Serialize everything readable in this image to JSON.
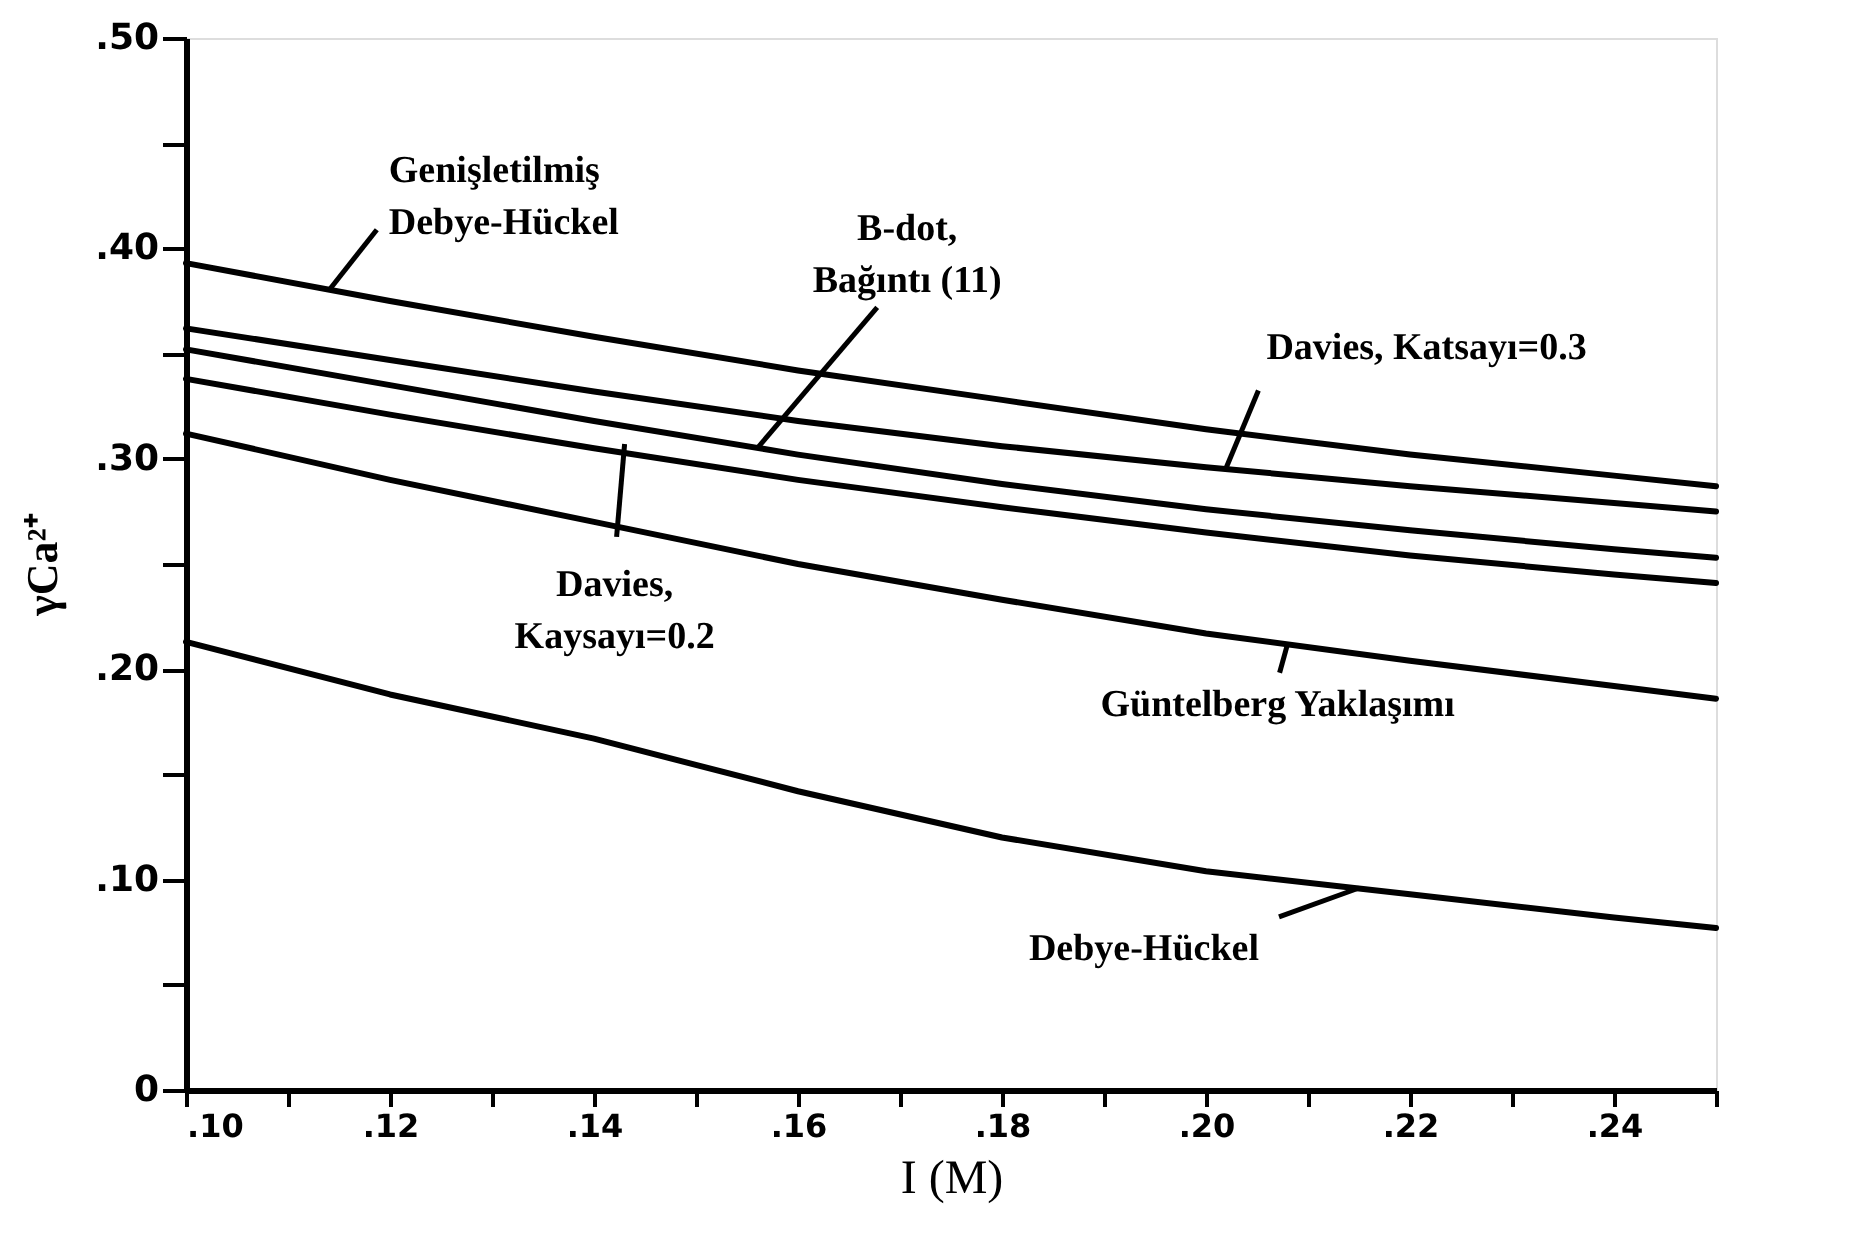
{
  "chart_data": {
    "type": "line",
    "xlabel": "I (M)",
    "ylabel": "γCa²⁺",
    "x": [
      0.1,
      0.12,
      0.14,
      0.16,
      0.18,
      0.2,
      0.22,
      0.24,
      0.25
    ],
    "series": [
      {
        "color": "#000000",
        "values": [
          0.393,
          0.375,
          0.358,
          0.342,
          0.328,
          0.314,
          0.302,
          0.292,
          0.287
        ]
      },
      {
        "color": "#000000",
        "values": [
          0.362,
          0.347,
          0.332,
          0.318,
          0.306,
          0.296,
          0.287,
          0.279,
          0.275
        ]
      },
      {
        "color": "#000000",
        "values": [
          0.352,
          0.335,
          0.318,
          0.302,
          0.288,
          0.276,
          0.266,
          0.257,
          0.253
        ]
      },
      {
        "color": "#000000",
        "values": [
          0.338,
          0.321,
          0.305,
          0.29,
          0.277,
          0.265,
          0.254,
          0.245,
          0.241
        ]
      },
      {
        "color": "#000000",
        "values": [
          0.312,
          0.29,
          0.27,
          0.25,
          0.233,
          0.217,
          0.204,
          0.192,
          0.186
        ]
      },
      {
        "color": "#000000",
        "values": [
          0.213,
          0.188,
          0.167,
          0.142,
          0.12,
          0.104,
          0.093,
          0.082,
          0.077
        ]
      }
    ],
    "xlim": [
      0.1,
      0.25
    ],
    "xticks": [
      {
        "value": 0.1,
        "label": ".10"
      },
      {
        "value": 0.11,
        "label": null
      },
      {
        "value": 0.12,
        "label": ".12"
      },
      {
        "value": 0.13,
        "label": null
      },
      {
        "value": 0.14,
        "label": ".14"
      },
      {
        "value": 0.15,
        "label": null
      },
      {
        "value": 0.16,
        "label": ".16"
      },
      {
        "value": 0.17,
        "label": null
      },
      {
        "value": 0.18,
        "label": ".18"
      },
      {
        "value": 0.19,
        "label": null
      },
      {
        "value": 0.2,
        "label": ".20"
      },
      {
        "value": 0.21,
        "label": null
      },
      {
        "value": 0.22,
        "label": ".22"
      },
      {
        "value": 0.23,
        "label": null
      },
      {
        "value": 0.24,
        "label": ".24"
      },
      {
        "value": 0.25,
        "label": null
      }
    ],
    "ylim": [
      0,
      0.5
    ],
    "yticks": [
      0,
      {
        "value": 0.05,
        "label": null
      },
      {
        "value": 0.1,
        "label": ".10"
      },
      {
        "value": 0.15,
        "label": null
      },
      {
        "value": 0.2,
        "label": ".20"
      },
      {
        "value": 0.25,
        "label": null
      },
      {
        "value": 0.3,
        "label": ".30"
      },
      {
        "value": 0.35,
        "label": null
      },
      {
        "value": 0.4,
        "label": ".40"
      },
      {
        "value": 0.45,
        "label": null
      },
      {
        "value": 0.5,
        "label": ".50"
      }
    ],
    "grid": false,
    "legend": false,
    "marker": "none",
    "line_style": "solid",
    "annotations": [
      {
        "text": "Genişletilmiş\nDebye-Hückel",
        "x": 0.114,
        "y": 0.38
      },
      {
        "text": "B-dot,\nBağıntı (11)",
        "x": 0.156,
        "y": 0.305
      },
      {
        "text": "Davies, Katsayı=0.3",
        "x": 0.202,
        "y": 0.296
      },
      {
        "text": "Davies,\nKaysayı=0.2",
        "x": 0.143,
        "y": 0.307
      },
      {
        "text": "Güntelberg Yaklaşımı",
        "x": 0.208,
        "y": 0.212
      },
      {
        "text": "Debye-Hückel",
        "x": 0.215,
        "y": 0.096
      }
    ]
  }
}
